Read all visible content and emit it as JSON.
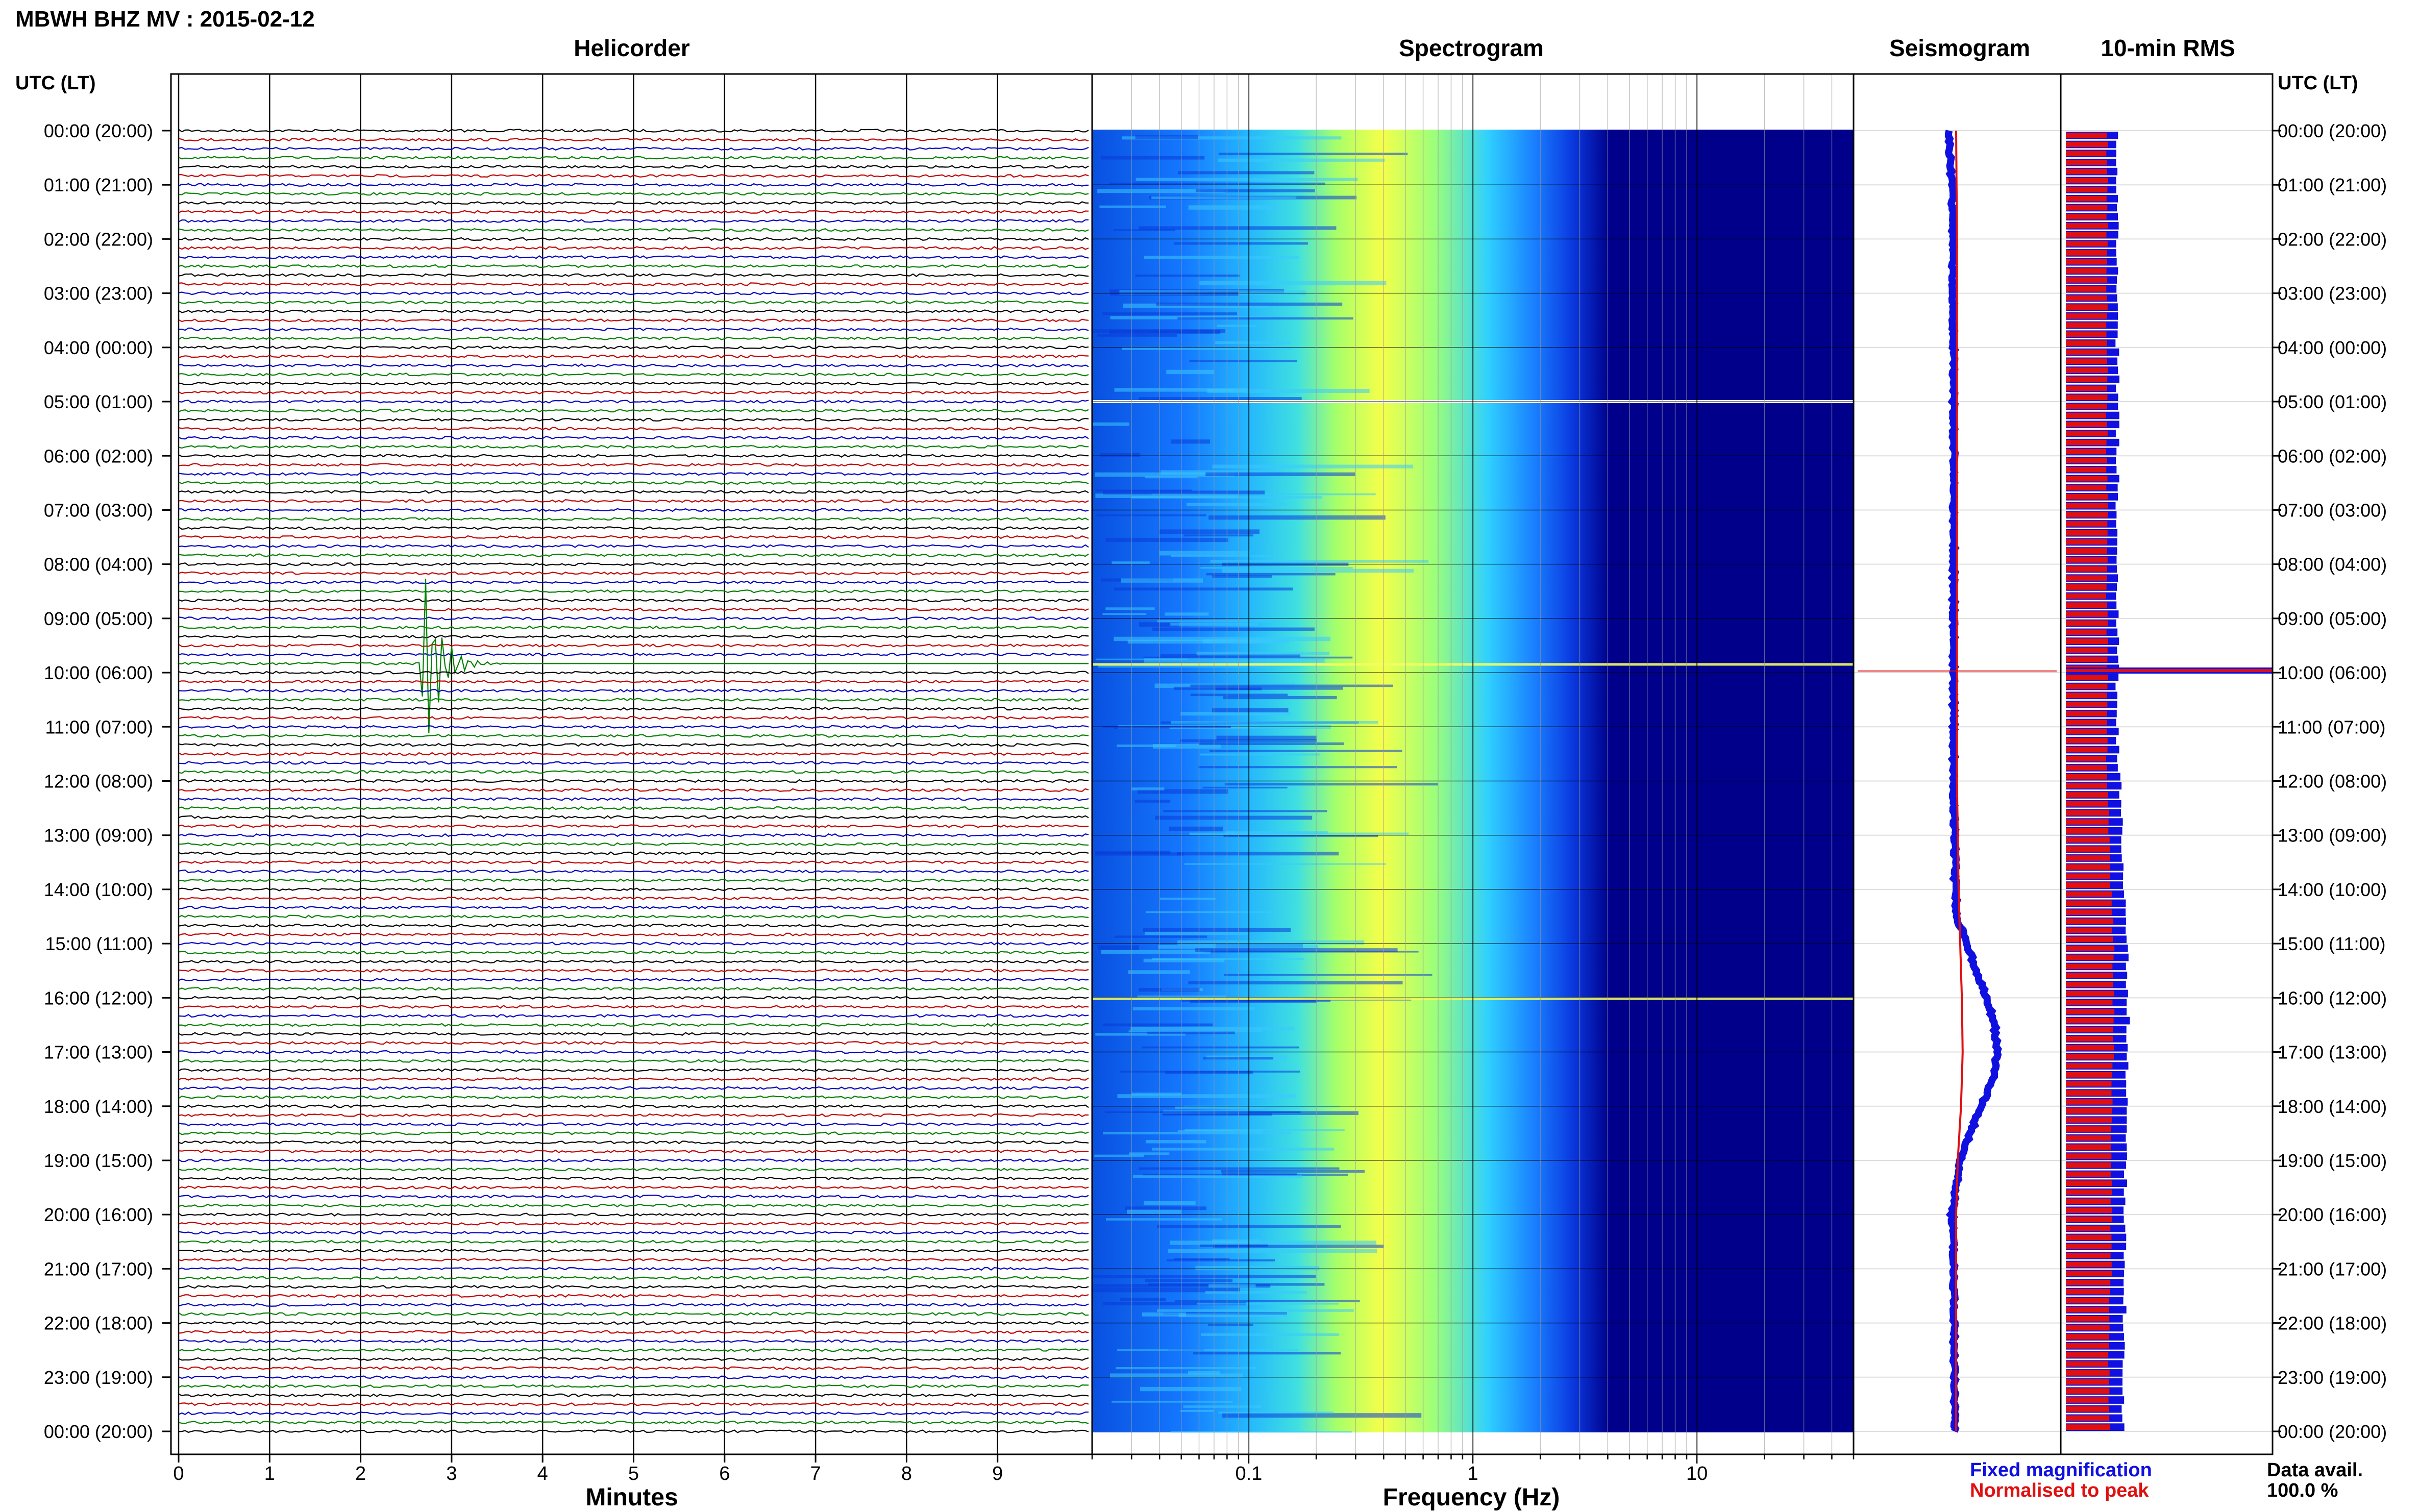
{
  "title": "MBWH BHZ MV : 2015-02-12",
  "headers": {
    "helicorder": "Helicorder",
    "spectrogram": "Spectrogram",
    "seismogram": "Seismogram",
    "rms": "10-min RMS"
  },
  "time_axis_label": "UTC (LT)",
  "time_labels": [
    "00:00 (20:00)",
    "01:00 (21:00)",
    "02:00 (22:00)",
    "03:00 (23:00)",
    "04:00 (00:00)",
    "05:00 (01:00)",
    "06:00 (02:00)",
    "07:00 (03:00)",
    "08:00 (04:00)",
    "09:00 (05:00)",
    "10:00 (06:00)",
    "11:00 (07:00)",
    "12:00 (08:00)",
    "13:00 (09:00)",
    "14:00 (10:00)",
    "15:00 (11:00)",
    "16:00 (12:00)",
    "17:00 (13:00)",
    "18:00 (14:00)",
    "19:00 (15:00)",
    "20:00 (16:00)",
    "21:00 (17:00)",
    "22:00 (18:00)",
    "23:00 (19:00)",
    "00:00 (20:00)"
  ],
  "xlabels": {
    "helicorder": "Minutes",
    "spectrogram": "Frequency (Hz)"
  },
  "legend": {
    "fixed": "Fixed magnification",
    "normalised": "Normalised to peak",
    "fixed_color": "#1010e0",
    "normalised_color": "#e01010"
  },
  "data_avail": {
    "label": "Data avail.",
    "value": "100.0 %"
  },
  "colors": {
    "trace_cycle": [
      "#000000",
      "#c00000",
      "#0000c0",
      "#008000"
    ],
    "spectrogram_low": "#00008b",
    "spectrogram_high": "#ffff40"
  },
  "chart_data": [
    {
      "type": "line",
      "name": "helicorder",
      "x_ticks": [
        0,
        1,
        2,
        3,
        4,
        5,
        6,
        7,
        8,
        9
      ],
      "xlim": [
        0,
        10
      ],
      "xlabel": "Minutes",
      "trace_interval_min": 10,
      "traces_per_hour": 6,
      "events": [
        {
          "time": "09:50",
          "minute": 2.65,
          "label": ""
        }
      ]
    },
    {
      "type": "heatmap",
      "name": "spectrogram",
      "x_ticks": [
        0.1,
        1,
        10
      ],
      "x_scale": "log",
      "xlim": [
        0.02,
        50
      ],
      "xlabel": "Frequency (Hz)",
      "y": "time of day, 00:00 to 24:00 UTC",
      "gaps": [
        "05:00"
      ],
      "bright_lines": [
        "09:50",
        "16:00"
      ]
    },
    {
      "type": "line",
      "name": "seismogram",
      "series": [
        {
          "name": "Fixed magnification",
          "hours": [
            0,
            1,
            2,
            3,
            4,
            5,
            6,
            7,
            8,
            9,
            10,
            11,
            12,
            13,
            14,
            14.5,
            15,
            15.5,
            16,
            16.5,
            17,
            17.5,
            18,
            18.5,
            19,
            20,
            21,
            22,
            23,
            24
          ],
          "values": [
            -0.05,
            0,
            0.01,
            0.01,
            0.02,
            0.02,
            0.02,
            0.02,
            0.02,
            0.02,
            0.02,
            0.02,
            0.02,
            0.03,
            0.04,
            0.06,
            0.18,
            0.3,
            0.42,
            0.52,
            0.56,
            0.5,
            0.36,
            0.22,
            0.1,
            0,
            0.02,
            0.02,
            0.03,
            0.03
          ]
        },
        {
          "name": "Normalised to peak",
          "hours": [
            0,
            2,
            4,
            6,
            8,
            10,
            12,
            14,
            15,
            16,
            17,
            18,
            19,
            20,
            22,
            24
          ],
          "values": [
            0.05,
            0.06,
            0.06,
            0.06,
            0.06,
            0.06,
            0.06,
            0.08,
            0.1,
            0.12,
            0.13,
            0.11,
            0.07,
            0.05,
            0.05,
            0.05
          ]
        }
      ]
    },
    {
      "type": "bar",
      "name": "10-min RMS",
      "series": [
        {
          "name": "Fixed magnification",
          "level_by_hour": [
            0.25,
            0.25,
            0.25,
            0.25,
            0.25,
            0.25,
            0.25,
            0.25,
            0.25,
            0.25,
            0.25,
            0.25,
            0.26,
            0.27,
            0.28,
            0.3,
            0.3,
            0.3,
            0.29,
            0.29,
            0.28,
            0.29,
            0.28,
            0.28,
            0.28
          ]
        },
        {
          "name": "Normalised to peak",
          "level_by_hour": [
            0.2,
            0.2,
            0.2,
            0.2,
            0.2,
            0.2,
            0.2,
            0.2,
            0.2,
            0.2,
            0.2,
            0.2,
            0.2,
            0.21,
            0.22,
            0.23,
            0.23,
            0.23,
            0.22,
            0.22,
            0.22,
            0.22,
            0.21,
            0.21,
            0.21
          ]
        }
      ],
      "spike": {
        "time": "10:00",
        "level": 1.0
      }
    }
  ]
}
